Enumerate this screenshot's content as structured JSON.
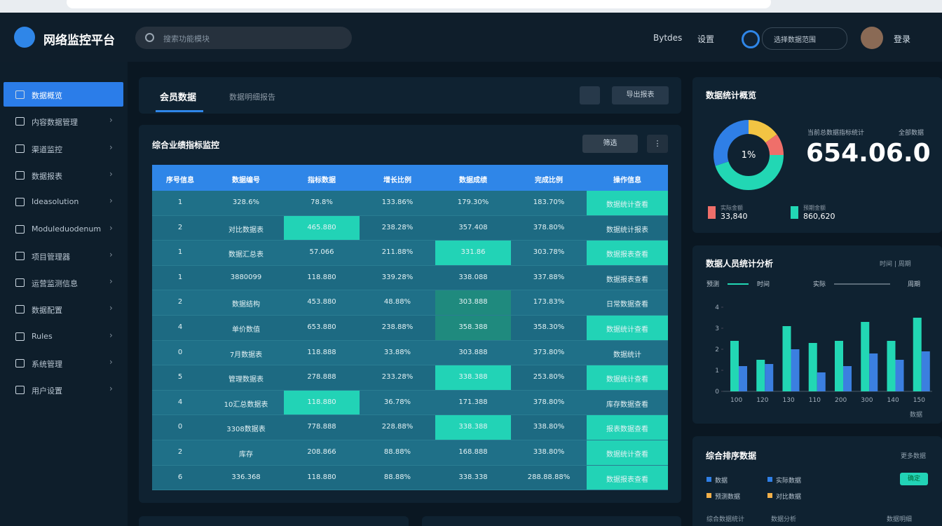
{
  "header": {
    "title": "网络监控平台",
    "search_placeholder": "搜索功能模块",
    "links": [
      "Bytdes",
      "设置"
    ],
    "dropdown": "选择数据范围",
    "user": "登录"
  },
  "sidebar": [
    "数据概览",
    "内容数据管理",
    "渠道监控",
    "数据报表",
    "Ideasolution",
    "Moduleduodenum",
    "项目管理器",
    "运营监测信息",
    "数据配置",
    "Rules",
    "系统管理",
    "用户设置"
  ],
  "tabs": [
    "会员数据",
    "数据明细报告"
  ],
  "tab_button": "导出报表",
  "table": {
    "title": "综合业绩指标监控",
    "filter": "筛选",
    "more": "⋮",
    "headers": [
      "序号信息",
      "数据编号",
      "指标数据",
      "增长比例",
      "数据成绩",
      "完成比例",
      "操作信息"
    ],
    "rows": [
      [
        "1",
        "328.6%",
        "78.8%",
        "133.86%",
        "179.30%",
        "183.70%",
        "数据统计查看"
      ],
      [
        "2",
        "对比数据表",
        "465.880",
        "238.28%",
        "357.408",
        "378.80%",
        "数据统计报表"
      ],
      [
        "1",
        "数据汇总表",
        "57.066",
        "211.88%",
        "331.86",
        "303.78%",
        "数据报表查看"
      ],
      [
        "1",
        "3880099",
        "118.880",
        "339.28%",
        "338.088",
        "337.88%",
        "数据报表查看"
      ],
      [
        "2",
        "数据结构",
        "453.880",
        "48.88%",
        "303.888",
        "173.83%",
        "日常数据查看"
      ],
      [
        "4",
        "单价数值",
        "653.880",
        "238.88%",
        "358.388",
        "358.30%",
        "数据统计查看"
      ],
      [
        "0",
        "7月数据表",
        "118.888",
        "33.88%",
        "303.888",
        "373.80%",
        "数据统计"
      ],
      [
        "5",
        "管理数据表",
        "278.888",
        "233.28%",
        "338.388",
        "253.80%",
        "数据统计查看"
      ],
      [
        "4",
        "10汇总数据表",
        "118.880",
        "36.78%",
        "171.388",
        "378.80%",
        "库存数据查看"
      ],
      [
        "0",
        "3308数据表",
        "778.888",
        "228.88%",
        "338.388",
        "338.80%",
        "报表数据查看"
      ],
      [
        "2",
        "库存",
        "208.866",
        "88.88%",
        "168.888",
        "338.80%",
        "数据统计查看"
      ],
      [
        "6",
        "336.368",
        "118.880",
        "88.88%",
        "338.338",
        "288.88.88%",
        "数据报表查看"
      ]
    ]
  },
  "donut": {
    "title": "数据统计概览",
    "center": "1%",
    "caption": "当前总数据指标统计",
    "caption_right": "全部数据",
    "big": "654.06.0",
    "values": [
      15,
      10,
      45,
      30
    ],
    "colors": [
      "#f2c443",
      "#ef6f6a",
      "#22d7b4",
      "#2f7fe6"
    ],
    "legend": [
      {
        "label": "实际金额",
        "value": "33,840"
      },
      {
        "label": "预期金额",
        "value": "860,620"
      }
    ]
  },
  "bar_chart": {
    "type": "bar",
    "title": "数据人员统计分析",
    "top_right": "时间 | 周期",
    "legend_right": "时间",
    "legend_right2": "周期",
    "categories": [
      "100",
      "120",
      "130",
      "110",
      "200",
      "300",
      "140",
      "150"
    ],
    "series": [
      {
        "name": "预测",
        "color": "#22d7b4",
        "values": [
          2.4,
          1.5,
          3.1,
          2.3,
          2.4,
          3.3,
          2.4,
          3.5
        ]
      },
      {
        "name": "实际",
        "color": "#3b7fe0",
        "values": [
          1.2,
          1.3,
          2.0,
          0.9,
          1.2,
          1.8,
          1.5,
          1.9
        ]
      }
    ],
    "ylim": [
      0,
      4
    ],
    "yticks": [
      0,
      1,
      2,
      3,
      4
    ],
    "footer": "数据"
  },
  "bottom_card": {
    "title": "综合排序数据",
    "more": "更多数据",
    "items": [
      "数据",
      "实际数据",
      "预测数据",
      "对比数据"
    ],
    "button": "确定",
    "footer": [
      "综合数据统计",
      "数据分析",
      "数据明细"
    ]
  }
}
